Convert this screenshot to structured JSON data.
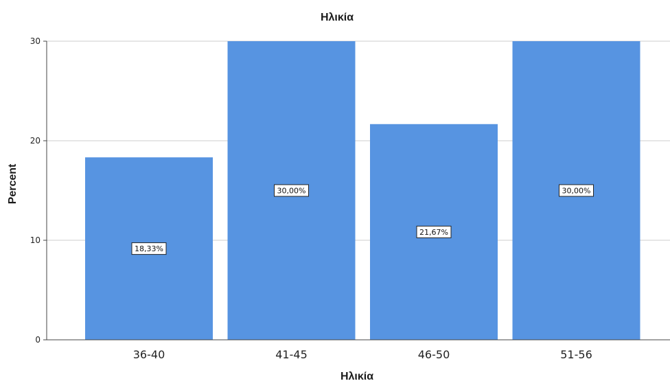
{
  "chart_data": {
    "type": "bar",
    "title": "Ηλικία",
    "xlabel": "Ηλικία",
    "ylabel": "Percent",
    "categories": [
      "36-40",
      "41-45",
      "46-50",
      "51-56"
    ],
    "values": [
      18.33,
      30.0,
      21.67,
      30.0
    ],
    "data_labels": [
      "18,33%",
      "30,00%",
      "21,67%",
      "30,00%"
    ],
    "yticks": [
      0,
      10,
      20,
      30
    ],
    "ytick_labels": [
      "0",
      "10",
      "20",
      "30"
    ],
    "ylim": [
      0,
      30
    ],
    "grid": true,
    "bar_color": "#5794e1",
    "grid_color": "#cccccc"
  }
}
